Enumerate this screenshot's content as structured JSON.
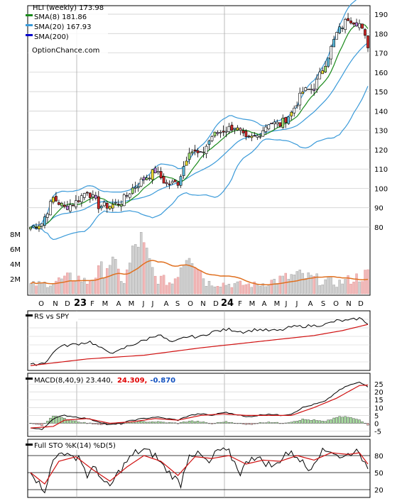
{
  "chart_data": {
    "type": "candlestick",
    "title": "HLI (weekly) 173.98",
    "ticker": "HLI",
    "legend": [
      {
        "label": "SMA(8) 181.86",
        "color": "#1a8a1a"
      },
      {
        "label": "SMA(20) 167.93",
        "color": "#3a9ad9"
      },
      {
        "label": "SMA(200)",
        "color": "#0000cc"
      }
    ],
    "watermark": "OptionChance.com",
    "price_axis": {
      "ticks": [
        80,
        90,
        100,
        110,
        120,
        130,
        140,
        150,
        160,
        170,
        180,
        190
      ],
      "ylim": [
        75,
        194
      ]
    },
    "volume_axis": {
      "ticks": [
        "2M",
        "4M",
        "6M",
        "8M"
      ],
      "values": [
        2,
        4,
        6,
        8
      ]
    },
    "x_labels": [
      "O",
      "N",
      "D",
      "23",
      "F",
      "M",
      "A",
      "M",
      "J",
      "J",
      "A",
      "S",
      "O",
      "N",
      "D",
      "24",
      "F",
      "M",
      "A",
      "M",
      "J",
      "J",
      "A",
      "S",
      "O",
      "N",
      "D"
    ],
    "close_anchors": [
      [
        0,
        80
      ],
      [
        4,
        82
      ],
      [
        8,
        95
      ],
      [
        12,
        90
      ],
      [
        16,
        93
      ],
      [
        20,
        99
      ],
      [
        24,
        91
      ],
      [
        28,
        91
      ],
      [
        32,
        93
      ],
      [
        36,
        100
      ],
      [
        40,
        105
      ],
      [
        44,
        109
      ],
      [
        48,
        102
      ],
      [
        52,
        103
      ],
      [
        56,
        120
      ],
      [
        60,
        117
      ],
      [
        64,
        127
      ],
      [
        68,
        130
      ],
      [
        72,
        132
      ],
      [
        76,
        125
      ],
      [
        80,
        127
      ],
      [
        84,
        134
      ],
      [
        88,
        133
      ],
      [
        92,
        139
      ],
      [
        96,
        150
      ],
      [
        100,
        152
      ],
      [
        104,
        165
      ],
      [
        108,
        180
      ],
      [
        112,
        188
      ],
      [
        116,
        185
      ],
      [
        119,
        174
      ]
    ],
    "volume_anchors": [
      [
        0,
        1.2
      ],
      [
        6,
        1.4
      ],
      [
        10,
        1.8
      ],
      [
        16,
        2.3
      ],
      [
        20,
        1.5
      ],
      [
        26,
        3.5
      ],
      [
        28,
        4.5
      ],
      [
        33,
        1.6
      ],
      [
        38,
        7.5
      ],
      [
        44,
        2.2
      ],
      [
        50,
        1.4
      ],
      [
        56,
        6.5
      ],
      [
        62,
        1.5
      ],
      [
        70,
        1.3
      ],
      [
        80,
        1.2
      ],
      [
        94,
        2.5
      ],
      [
        108,
        1.4
      ],
      [
        118,
        2.5
      ],
      [
        119,
        2.6
      ]
    ],
    "rs": {
      "label": "RS vs SPY",
      "anchors": [
        [
          0,
          -0.9
        ],
        [
          5,
          -0.8
        ],
        [
          10,
          -0.15
        ],
        [
          16,
          -0.05
        ],
        [
          21,
          0.05
        ],
        [
          26,
          -0.3
        ],
        [
          30,
          -0.4
        ],
        [
          34,
          -0.15
        ],
        [
          40,
          0.1
        ],
        [
          45,
          0.35
        ],
        [
          50,
          0.0
        ],
        [
          55,
          0.25
        ],
        [
          60,
          0.25
        ],
        [
          64,
          0.45
        ],
        [
          70,
          0.55
        ],
        [
          75,
          0.45
        ],
        [
          80,
          0.55
        ],
        [
          84,
          0.5
        ],
        [
          88,
          0.5
        ],
        [
          92,
          0.65
        ],
        [
          100,
          0.7
        ],
        [
          104,
          0.75
        ],
        [
          108,
          0.9
        ],
        [
          112,
          0.9
        ],
        [
          116,
          1.0
        ],
        [
          119,
          0.8
        ]
      ],
      "signal_anchors": [
        [
          0,
          -0.92
        ],
        [
          20,
          -0.65
        ],
        [
          40,
          -0.5
        ],
        [
          60,
          -0.2
        ],
        [
          80,
          0.05
        ],
        [
          100,
          0.3
        ],
        [
          110,
          0.5
        ],
        [
          119,
          0.75
        ]
      ]
    },
    "macd": {
      "label": "MACD(8,40,9) 23.440,",
      "value_red": "24.309,",
      "value_blue": "-0.870",
      "ticks": [
        25,
        20,
        15,
        10,
        5,
        0,
        -5
      ],
      "macd_anchors": [
        [
          0,
          -3
        ],
        [
          4,
          -4
        ],
        [
          8,
          3
        ],
        [
          12,
          5
        ],
        [
          16,
          4
        ],
        [
          20,
          3
        ],
        [
          24,
          1
        ],
        [
          28,
          -1
        ],
        [
          32,
          0
        ],
        [
          36,
          2
        ],
        [
          40,
          3
        ],
        [
          44,
          4
        ],
        [
          48,
          3
        ],
        [
          52,
          2
        ],
        [
          56,
          5
        ],
        [
          60,
          6
        ],
        [
          64,
          5
        ],
        [
          68,
          7
        ],
        [
          72,
          6
        ],
        [
          76,
          4
        ],
        [
          80,
          5
        ],
        [
          84,
          6
        ],
        [
          88,
          5
        ],
        [
          92,
          6
        ],
        [
          96,
          10
        ],
        [
          100,
          12
        ],
        [
          104,
          14
        ],
        [
          108,
          20
        ],
        [
          112,
          24
        ],
        [
          116,
          26
        ],
        [
          119,
          23.44
        ]
      ],
      "signal_anchors": [
        [
          0,
          -3
        ],
        [
          8,
          -2
        ],
        [
          12,
          2
        ],
        [
          20,
          3
        ],
        [
          28,
          0
        ],
        [
          36,
          1
        ],
        [
          44,
          3
        ],
        [
          52,
          2
        ],
        [
          60,
          5
        ],
        [
          68,
          6
        ],
        [
          76,
          5
        ],
        [
          84,
          5
        ],
        [
          92,
          5
        ],
        [
          100,
          10
        ],
        [
          108,
          16
        ],
        [
          116,
          24
        ],
        [
          119,
          24.3
        ]
      ]
    },
    "sto": {
      "label": "Full STO %K(14) %D(5)",
      "ticks": [
        80,
        50,
        20
      ],
      "k_anchors": [
        [
          0,
          55
        ],
        [
          3,
          30
        ],
        [
          5,
          20
        ],
        [
          8,
          70
        ],
        [
          11,
          90
        ],
        [
          14,
          75
        ],
        [
          17,
          80
        ],
        [
          20,
          45
        ],
        [
          23,
          60
        ],
        [
          26,
          30
        ],
        [
          28,
          25
        ],
        [
          31,
          50
        ],
        [
          34,
          70
        ],
        [
          37,
          85
        ],
        [
          40,
          90
        ],
        [
          44,
          80
        ],
        [
          47,
          60
        ],
        [
          50,
          45
        ],
        [
          53,
          30
        ],
        [
          56,
          85
        ],
        [
          60,
          80
        ],
        [
          63,
          65
        ],
        [
          66,
          90
        ],
        [
          70,
          85
        ],
        [
          74,
          50
        ],
        [
          78,
          80
        ],
        [
          82,
          70
        ],
        [
          86,
          60
        ],
        [
          90,
          85
        ],
        [
          94,
          80
        ],
        [
          98,
          55
        ],
        [
          102,
          85
        ],
        [
          106,
          90
        ],
        [
          110,
          75
        ],
        [
          113,
          85
        ],
        [
          116,
          90
        ],
        [
          119,
          50
        ]
      ],
      "d_anchors": [
        [
          0,
          50
        ],
        [
          5,
          30
        ],
        [
          10,
          70
        ],
        [
          16,
          78
        ],
        [
          22,
          55
        ],
        [
          28,
          35
        ],
        [
          34,
          60
        ],
        [
          40,
          80
        ],
        [
          46,
          70
        ],
        [
          52,
          45
        ],
        [
          58,
          78
        ],
        [
          64,
          75
        ],
        [
          70,
          80
        ],
        [
          76,
          65
        ],
        [
          82,
          72
        ],
        [
          88,
          70
        ],
        [
          94,
          80
        ],
        [
          100,
          72
        ],
        [
          106,
          85
        ],
        [
          112,
          82
        ],
        [
          116,
          85
        ],
        [
          119,
          65
        ]
      ]
    }
  }
}
